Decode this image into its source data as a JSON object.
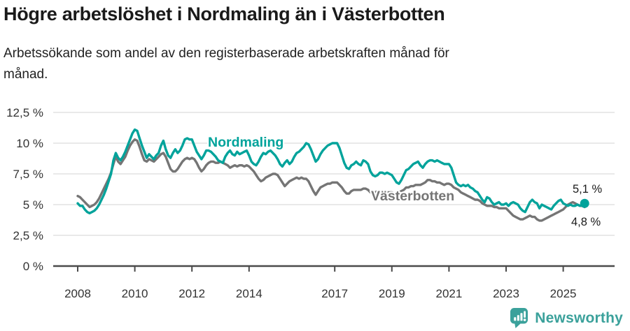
{
  "title": "Högre arbetslöshet i Nordmaling än i Västerbotten",
  "subtitle": {
    "lines": [
      "Arbetssökande som andel av den registerbaserade arbetskraften månad för",
      "månad."
    ]
  },
  "footer": {
    "brand": "Newsworthy",
    "logo_icon": "newsworthy-speech-bubble-bar-chart-icon"
  },
  "colors": {
    "nordmaling": "#00a39b",
    "vasterbotten": "#757575",
    "grid": "#dcdcdc",
    "axis": "#4a4a4a",
    "tick_text": "#333333",
    "annotation_text": "#1a1a1a",
    "brand": "#3ba19b",
    "background": "#ffffff"
  },
  "chart_data": {
    "type": "line",
    "title": "Högre arbetslöshet i Nordmaling än i Västerbotten",
    "x_unit": "month",
    "x_start": "2008-01",
    "x_end": "2025-10",
    "ylim": [
      0,
      12.5
    ],
    "grid": "horizontal",
    "legend_position": "inline-labels",
    "y_ticks": [
      {
        "value": 0,
        "label": "0 %"
      },
      {
        "value": 2.5,
        "label": "2,5 %"
      },
      {
        "value": 5,
        "label": "5 %"
      },
      {
        "value": 7.5,
        "label": "7,5 %"
      },
      {
        "value": 10,
        "label": "10 %"
      },
      {
        "value": 12.5,
        "label": "12,5 %"
      }
    ],
    "x_ticks": [
      {
        "year": 2008,
        "label": "2008"
      },
      {
        "year": 2010,
        "label": "2010"
      },
      {
        "year": 2012,
        "label": "2012"
      },
      {
        "year": 2014,
        "label": "2014"
      },
      {
        "year": 2017,
        "label": "2017"
      },
      {
        "year": 2019,
        "label": "2019"
      },
      {
        "year": 2021,
        "label": "2021"
      },
      {
        "year": 2023,
        "label": "2023"
      },
      {
        "year": 2025,
        "label": "2025"
      }
    ],
    "series": [
      {
        "name": "Västerbotten",
        "color": "#757575",
        "end_label": "4,8 %",
        "end_value": 4.8,
        "values": [
          5.7,
          5.6,
          5.4,
          5.2,
          5.0,
          4.8,
          4.9,
          5.0,
          5.2,
          5.5,
          5.9,
          6.3,
          6.7,
          7.1,
          7.6,
          8.3,
          8.9,
          8.5,
          8.3,
          8.6,
          8.9,
          9.4,
          9.8,
          10.1,
          10.3,
          10.2,
          9.7,
          9.1,
          8.6,
          8.5,
          8.7,
          8.6,
          8.5,
          8.7,
          8.9,
          9.1,
          9.2,
          8.9,
          8.4,
          7.9,
          7.7,
          7.7,
          7.9,
          8.2,
          8.5,
          8.7,
          8.8,
          8.7,
          8.8,
          8.7,
          8.4,
          8.0,
          7.7,
          7.9,
          8.2,
          8.4,
          8.5,
          8.5,
          8.4,
          8.4,
          8.5,
          8.4,
          8.3,
          8.2,
          8.0,
          8.1,
          8.2,
          8.1,
          8.2,
          8.2,
          8.1,
          8.2,
          8.1,
          7.9,
          7.7,
          7.4,
          7.1,
          6.9,
          7.0,
          7.2,
          7.3,
          7.4,
          7.5,
          7.5,
          7.4,
          7.1,
          6.8,
          6.5,
          6.7,
          6.9,
          7.0,
          7.1,
          7.2,
          7.1,
          7.2,
          7.1,
          7.1,
          6.9,
          6.5,
          6.1,
          5.8,
          6.1,
          6.4,
          6.5,
          6.6,
          6.7,
          6.7,
          6.8,
          6.8,
          6.8,
          6.6,
          6.4,
          6.1,
          5.9,
          5.9,
          6.1,
          6.2,
          6.2,
          6.2,
          6.2,
          6.3,
          6.3,
          6.2,
          6.0,
          5.9,
          6.0,
          6.1,
          6.1,
          6.0,
          6.0,
          6.0,
          6.0,
          6.0,
          5.9,
          5.9,
          6.0,
          6.1,
          6.2,
          6.4,
          6.4,
          6.5,
          6.5,
          6.6,
          6.6,
          6.6,
          6.7,
          6.8,
          7.0,
          7.0,
          6.9,
          6.9,
          6.8,
          6.8,
          6.7,
          6.6,
          6.7,
          6.7,
          6.6,
          6.4,
          6.3,
          6.2,
          6.0,
          5.9,
          5.8,
          5.7,
          5.6,
          5.5,
          5.4,
          5.4,
          5.3,
          5.1,
          5.0,
          4.9,
          4.9,
          4.9,
          4.8,
          4.8,
          4.7,
          4.7,
          4.7,
          4.7,
          4.5,
          4.3,
          4.1,
          4.0,
          3.9,
          3.8,
          3.8,
          3.9,
          4.0,
          4.1,
          4.0,
          4.0,
          3.8,
          3.7,
          3.7,
          3.8,
          3.9,
          4.0,
          4.1,
          4.2,
          4.3,
          4.4,
          4.5,
          4.6,
          4.8,
          5.0,
          5.1,
          5.2,
          5.1,
          5.0,
          4.9,
          4.9,
          4.8
        ]
      },
      {
        "name": "Nordmaling",
        "color": "#00a39b",
        "end_label": "5,1 %",
        "end_value": 5.1,
        "values": [
          5.1,
          4.9,
          4.9,
          4.6,
          4.4,
          4.3,
          4.4,
          4.5,
          4.7,
          5.0,
          5.4,
          5.8,
          6.3,
          6.9,
          7.5,
          8.6,
          9.2,
          8.8,
          8.6,
          8.9,
          9.3,
          9.8,
          10.3,
          10.8,
          11.1,
          11.0,
          10.4,
          9.8,
          9.3,
          8.8,
          9.1,
          8.9,
          8.7,
          9.0,
          9.2,
          9.8,
          10.2,
          9.5,
          9.0,
          8.8,
          9.2,
          9.5,
          9.2,
          9.4,
          9.8,
          10.3,
          10.4,
          10.3,
          10.3,
          9.8,
          9.3,
          9.0,
          8.7,
          9.0,
          9.4,
          9.4,
          9.3,
          9.1,
          8.9,
          8.6,
          8.5,
          8.4,
          8.9,
          9.2,
          9.4,
          9.1,
          9.0,
          9.3,
          9.1,
          9.2,
          9.3,
          9.4,
          9.0,
          8.5,
          8.3,
          8.2,
          8.5,
          8.9,
          9.2,
          9.1,
          9.3,
          9.4,
          9.2,
          9.0,
          8.7,
          8.3,
          8.1,
          8.4,
          8.6,
          8.3,
          8.5,
          8.9,
          9.2,
          9.3,
          9.5,
          9.7,
          10.0,
          9.9,
          9.5,
          9.0,
          8.5,
          8.7,
          9.1,
          9.4,
          9.6,
          9.8,
          9.9,
          10.0,
          10.0,
          10.0,
          9.6,
          9.0,
          8.4,
          8.0,
          7.9,
          8.2,
          8.3,
          8.5,
          8.3,
          8.2,
          8.6,
          8.5,
          8.3,
          7.7,
          7.4,
          7.3,
          7.4,
          7.6,
          7.6,
          7.5,
          7.6,
          7.5,
          7.4,
          7.1,
          6.8,
          6.7,
          7.0,
          7.4,
          7.8,
          7.9,
          8.1,
          8.3,
          8.4,
          8.5,
          8.2,
          8.0,
          8.3,
          8.5,
          8.6,
          8.6,
          8.5,
          8.6,
          8.5,
          8.4,
          8.3,
          8.3,
          8.3,
          8.0,
          7.4,
          6.8,
          6.6,
          6.5,
          6.6,
          6.5,
          6.6,
          6.4,
          6.3,
          6.1,
          6.0,
          5.7,
          5.4,
          5.2,
          5.6,
          5.5,
          5.2,
          5.0,
          5.1,
          5.2,
          5.0,
          5.0,
          5.1,
          4.9,
          5.1,
          5.2,
          5.1,
          5.0,
          4.7,
          4.5,
          4.4,
          4.8,
          5.2,
          5.4,
          5.2,
          5.1,
          4.7,
          5.0,
          4.9,
          4.8,
          4.7,
          4.6,
          4.9,
          5.1,
          5.3,
          5.4,
          5.1,
          5.0,
          4.9,
          5.0,
          4.9,
          4.9,
          5.0,
          4.9,
          5.0,
          5.1
        ]
      }
    ],
    "annotations": {
      "series_labels": [
        {
          "text": "Västerbotten",
          "color": "#757575"
        },
        {
          "text": "Nordmaling",
          "color": "#00a39b"
        }
      ]
    }
  }
}
